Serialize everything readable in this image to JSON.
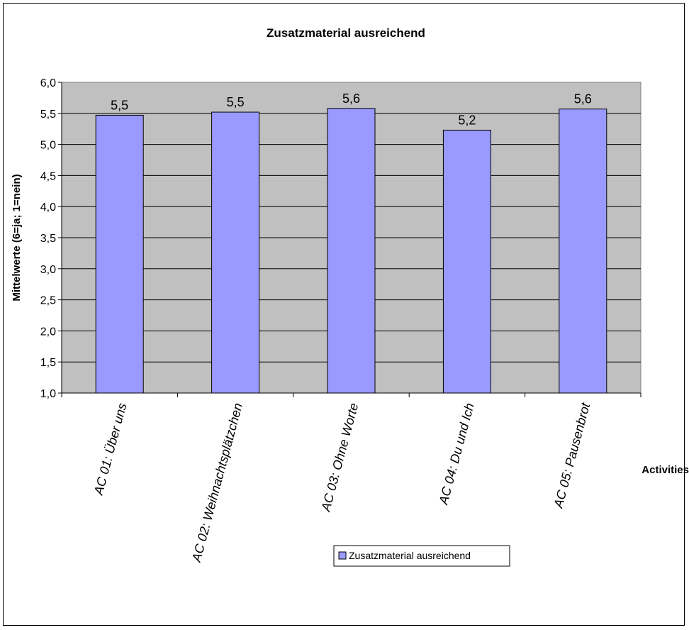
{
  "chart_data": {
    "type": "bar",
    "title": "Zusatzmaterial ausreichend",
    "categories": [
      "AC 01:  Über uns",
      "AC 02: Weihnachtsplätzchen",
      "AC 03: Ohne Worte",
      "AC 04: Du und Ich",
      "AC 05: Pausenbrot"
    ],
    "series": [
      {
        "name": "Zusatzmaterial ausreichend",
        "values": [
          5.47,
          5.52,
          5.58,
          5.23,
          5.57
        ],
        "labels": [
          "5,5",
          "5,5",
          "5,6",
          "5,2",
          "5,6"
        ],
        "color": "#9999ff"
      }
    ],
    "xlabel": "Activities",
    "ylabel": "Mittelwerte (6=ja; 1=nein)",
    "ylim": [
      1.0,
      6.0
    ],
    "yticks": [
      "1,0",
      "1,5",
      "2,0",
      "2,5",
      "3,0",
      "3,5",
      "4,0",
      "4,5",
      "5,0",
      "5,5",
      "6,0"
    ],
    "grid": true,
    "plot_background": "#c0c0c0",
    "legend_position": "bottom"
  }
}
